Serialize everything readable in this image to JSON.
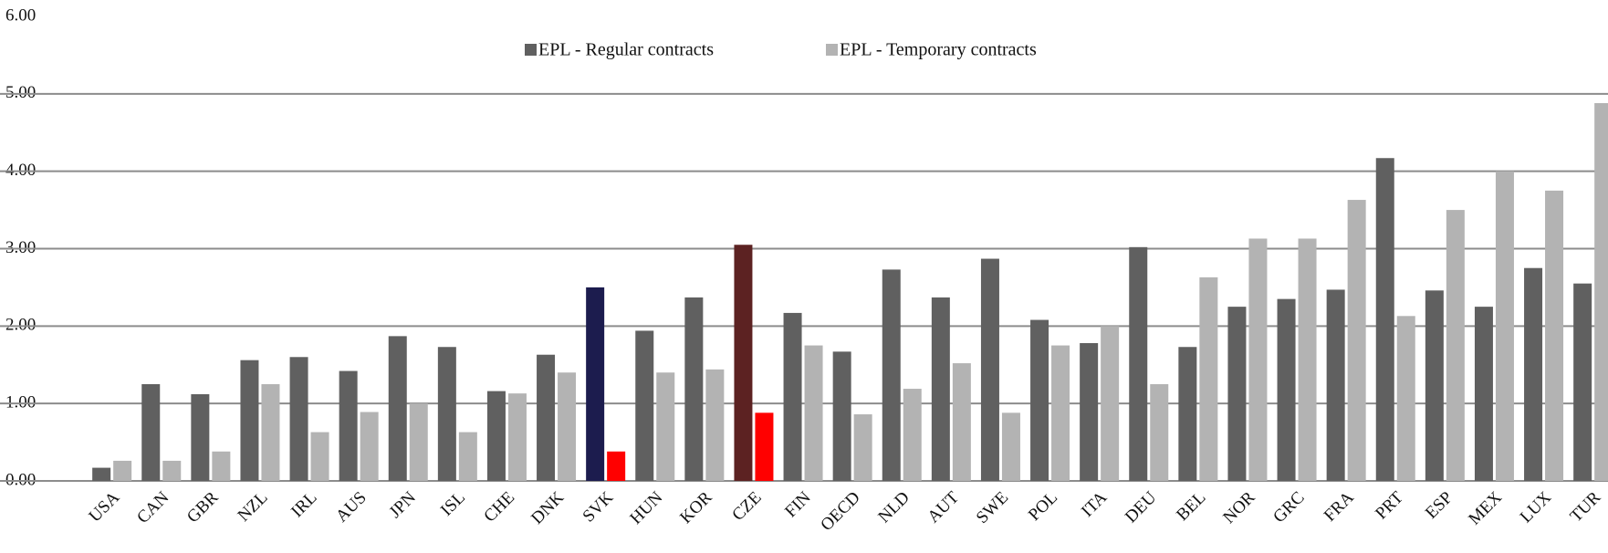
{
  "chart_data": {
    "type": "bar",
    "categories": [
      "USA",
      "CAN",
      "GBR",
      "NZL",
      "IRL",
      "AUS",
      "JPN",
      "ISL",
      "CHE",
      "DNK",
      "SVK",
      "HUN",
      "KOR",
      "CZE",
      "FIN",
      "OECD",
      "NLD",
      "AUT",
      "SWE",
      "POL",
      "ITA",
      "DEU",
      "BEL",
      "NOR",
      "GRC",
      "FRA",
      "PRT",
      "ESP",
      "MEX",
      "LUX",
      "TUR"
    ],
    "series": [
      {
        "name": "EPL - Regular contracts",
        "color": "#606060",
        "point_colors": {
          "SVK": "#1c1c4e",
          "CZE": "#5c2222"
        },
        "values": [
          0.17,
          1.25,
          1.12,
          1.56,
          1.6,
          1.42,
          1.87,
          1.73,
          1.16,
          1.63,
          2.5,
          1.94,
          2.37,
          3.05,
          2.17,
          1.67,
          2.73,
          2.37,
          2.87,
          2.08,
          1.78,
          3.02,
          1.73,
          2.25,
          2.35,
          2.47,
          4.17,
          2.46,
          2.25,
          2.75,
          2.55
        ]
      },
      {
        "name": "EPL - Temporary contracts",
        "color": "#b3b3b3",
        "point_colors": {
          "SVK": "#ff0000",
          "CZE": "#ff0000"
        },
        "values": [
          0.26,
          0.26,
          0.38,
          1.25,
          0.63,
          0.89,
          1.0,
          0.63,
          1.13,
          1.4,
          0.38,
          1.4,
          1.44,
          0.88,
          1.75,
          0.86,
          1.19,
          1.52,
          0.88,
          1.75,
          2.0,
          1.25,
          2.63,
          3.13,
          3.13,
          3.63,
          2.13,
          3.5,
          4.0,
          3.75,
          4.88
        ]
      }
    ],
    "ylim": [
      0,
      6
    ],
    "yticks": [
      {
        "value": 0,
        "label": "0.00"
      },
      {
        "value": 1,
        "label": "1.00"
      },
      {
        "value": 2,
        "label": "2.00"
      },
      {
        "value": 3,
        "label": "3.00"
      },
      {
        "value": 4,
        "label": "4.00"
      },
      {
        "value": 5,
        "label": "5.00"
      },
      {
        "value": 6,
        "label": "6.00"
      }
    ],
    "grid": true,
    "legend": "top"
  }
}
